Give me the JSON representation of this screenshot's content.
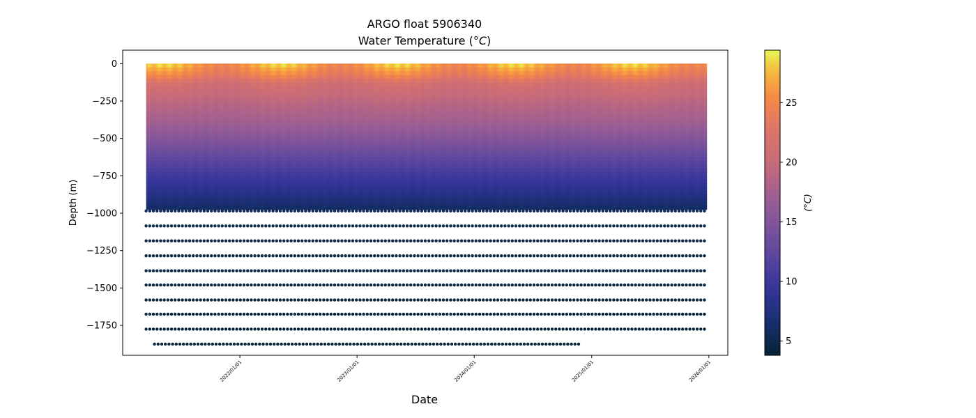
{
  "chart_data": {
    "type": "heatmap",
    "title": "ARGO float 5906340",
    "subtitle_prefix": "Water Temperature (",
    "subtitle_unit": "°C",
    "subtitle_suffix": ")",
    "xlabel": "Date",
    "ylabel": "Depth (m)",
    "colorbar_label": "(°C)",
    "colormap": "thermal",
    "xlim": [
      "2021-01-01",
      "2026-03-01"
    ],
    "ylim": [
      -1950,
      90
    ],
    "clim": [
      3.8,
      29.4
    ],
    "x_ticks": [
      {
        "value": "2022-01-01",
        "label": "2022/01/01"
      },
      {
        "value": "2023-01-01",
        "label": "2023/01/01"
      },
      {
        "value": "2024-01-01",
        "label": "2024/01/01"
      },
      {
        "value": "2025-01-01",
        "label": "2025/01/01"
      },
      {
        "value": "2026-01-01",
        "label": "2026/01/01"
      }
    ],
    "y_ticks": [
      {
        "value": 0,
        "label": "0"
      },
      {
        "value": -250,
        "label": "−250"
      },
      {
        "value": -500,
        "label": "−500"
      },
      {
        "value": -750,
        "label": "−750"
      },
      {
        "value": -1000,
        "label": "−1000"
      },
      {
        "value": -1250,
        "label": "−1250"
      },
      {
        "value": -1500,
        "label": "−1500"
      },
      {
        "value": -1750,
        "label": "−1750"
      }
    ],
    "colorbar_ticks": [
      {
        "value": 5,
        "label": "5"
      },
      {
        "value": 10,
        "label": "10"
      },
      {
        "value": 15,
        "label": "15"
      },
      {
        "value": 20,
        "label": "20"
      },
      {
        "value": 25,
        "label": "25"
      }
    ],
    "profile_start": "2021-03-15",
    "profile_end": "2025-12-25",
    "deep_start": "2021-04-10",
    "deep_end": "2024-12-01",
    "dense_depth_max": -975,
    "deep_levels": [
      -985,
      -1085,
      -1185,
      -1285,
      -1385,
      -1480,
      -1580,
      -1675,
      -1775,
      -1875
    ],
    "temperature_profile": [
      {
        "depth": 0,
        "temp": 26.5
      },
      {
        "depth": -60,
        "temp": 24.5
      },
      {
        "depth": -120,
        "temp": 21.5
      },
      {
        "depth": -250,
        "temp": 19.0
      },
      {
        "depth": -400,
        "temp": 17.0
      },
      {
        "depth": -500,
        "temp": 15.0
      },
      {
        "depth": -600,
        "temp": 12.8
      },
      {
        "depth": -750,
        "temp": 10.0
      },
      {
        "depth": -875,
        "temp": 7.8
      },
      {
        "depth": -975,
        "temp": 5.8
      },
      {
        "depth": -1100,
        "temp": 4.8
      },
      {
        "depth": -1900,
        "temp": 4.0
      }
    ]
  }
}
